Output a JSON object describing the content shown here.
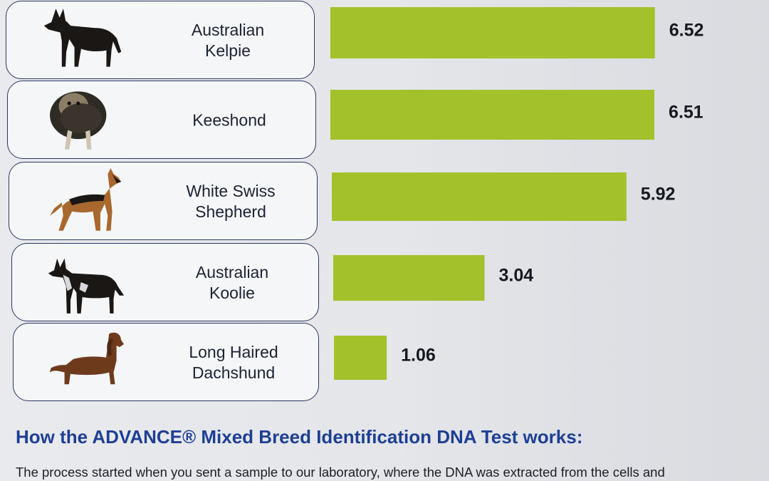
{
  "chart_data": {
    "type": "bar",
    "orientation": "horizontal",
    "categories": [
      "Australian\nKelpie",
      "Keeshond",
      "White Swiss\nShepherd",
      "Australian\nKoolie",
      "Long Haired\nDachshund"
    ],
    "values": [
      6.52,
      6.51,
      5.92,
      3.04,
      1.06
    ],
    "value_labels": [
      "6.52",
      "6.51",
      "5.92",
      "3.04",
      "1.06"
    ],
    "bar_color": "#a3c12a",
    "icons": [
      "kelpie-dog-icon",
      "keeshond-dog-icon",
      "white-swiss-shepherd-dog-icon",
      "koolie-dog-icon",
      "dachshund-dog-icon"
    ],
    "title": "",
    "xlabel": "",
    "ylabel": "",
    "grid": false,
    "legend": "none"
  },
  "section": {
    "heading": "How the ADVANCE® Mixed Breed Identification DNA Test works:",
    "body": "The process started when you sent a sample to our laboratory, where the DNA was extracted from the cells and"
  },
  "colors": {
    "heading": "#1e3f95",
    "card_border": "#2a3560",
    "dog_black": "#1b1714",
    "dog_tan": "#a9682d",
    "dog_brown": "#6e3a1c"
  }
}
